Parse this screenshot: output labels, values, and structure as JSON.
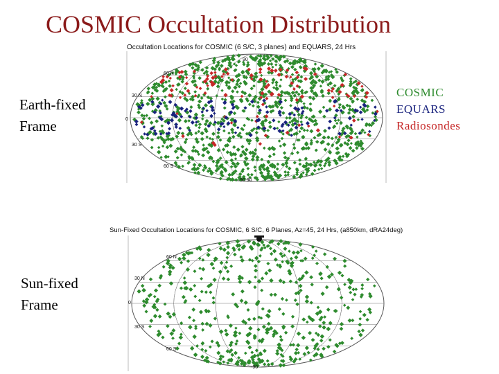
{
  "slide": {
    "title": "COSMIC Occultation Distribution",
    "top_label_line1": "Earth-fixed",
    "top_label_line2": "Frame",
    "bottom_label_line1": "Sun-fixed",
    "bottom_label_line2": "Frame"
  },
  "legend": {
    "items": [
      {
        "label": "COSMIC",
        "color": "#2e8b2e"
      },
      {
        "label": "EQUARS",
        "color": "#1a237e"
      },
      {
        "label": "Radiosondes",
        "color": "#c62828"
      }
    ]
  },
  "top_map": {
    "title": "Occultation Locations for COSMIC (6 S/C, 3 planes) and EQUARS, 24 Hrs",
    "lat_labels": [
      "60 N",
      "30 N",
      "0",
      "30 S",
      "60 S",
      "60"
    ],
    "top_tick": "90",
    "bottom_tick": "90 90"
  },
  "bottom_map": {
    "title": "Sun-Fixed Occultation Locations for COSMIC, 6 S/C, 6 Planes, Az=45, 24 Hrs, (a850km, dRA24deg)",
    "lat_labels": [
      "60 N",
      "30 N",
      "0",
      "30 S",
      "60 S"
    ],
    "bottom_tick": "-90"
  },
  "colors": {
    "cosmic": "#2e8b2e",
    "equars": "#1a237e",
    "radiosondes": "#c62828"
  }
}
